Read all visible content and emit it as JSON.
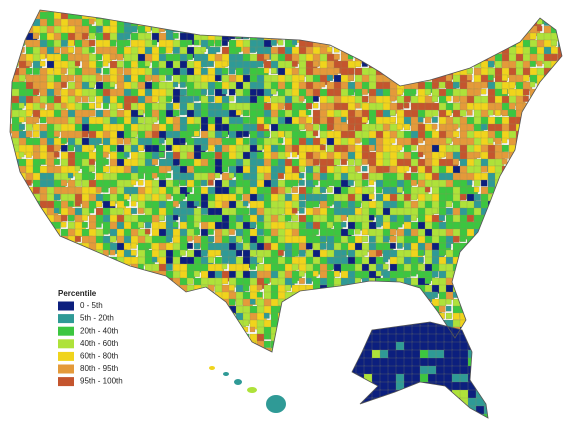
{
  "legend": {
    "title": "Percentile",
    "items": [
      {
        "label": "0 - 5th",
        "color": "#0c1f7e"
      },
      {
        "label": "5th - 20th",
        "color": "#2f9a96"
      },
      {
        "label": "20th - 40th",
        "color": "#3cc640"
      },
      {
        "label": "40th - 60th",
        "color": "#aee23a"
      },
      {
        "label": "60th - 80th",
        "color": "#f0d41c"
      },
      {
        "label": "80th - 95th",
        "color": "#e49a3a"
      },
      {
        "label": "95th - 100th",
        "color": "#c4552e"
      }
    ]
  }
}
